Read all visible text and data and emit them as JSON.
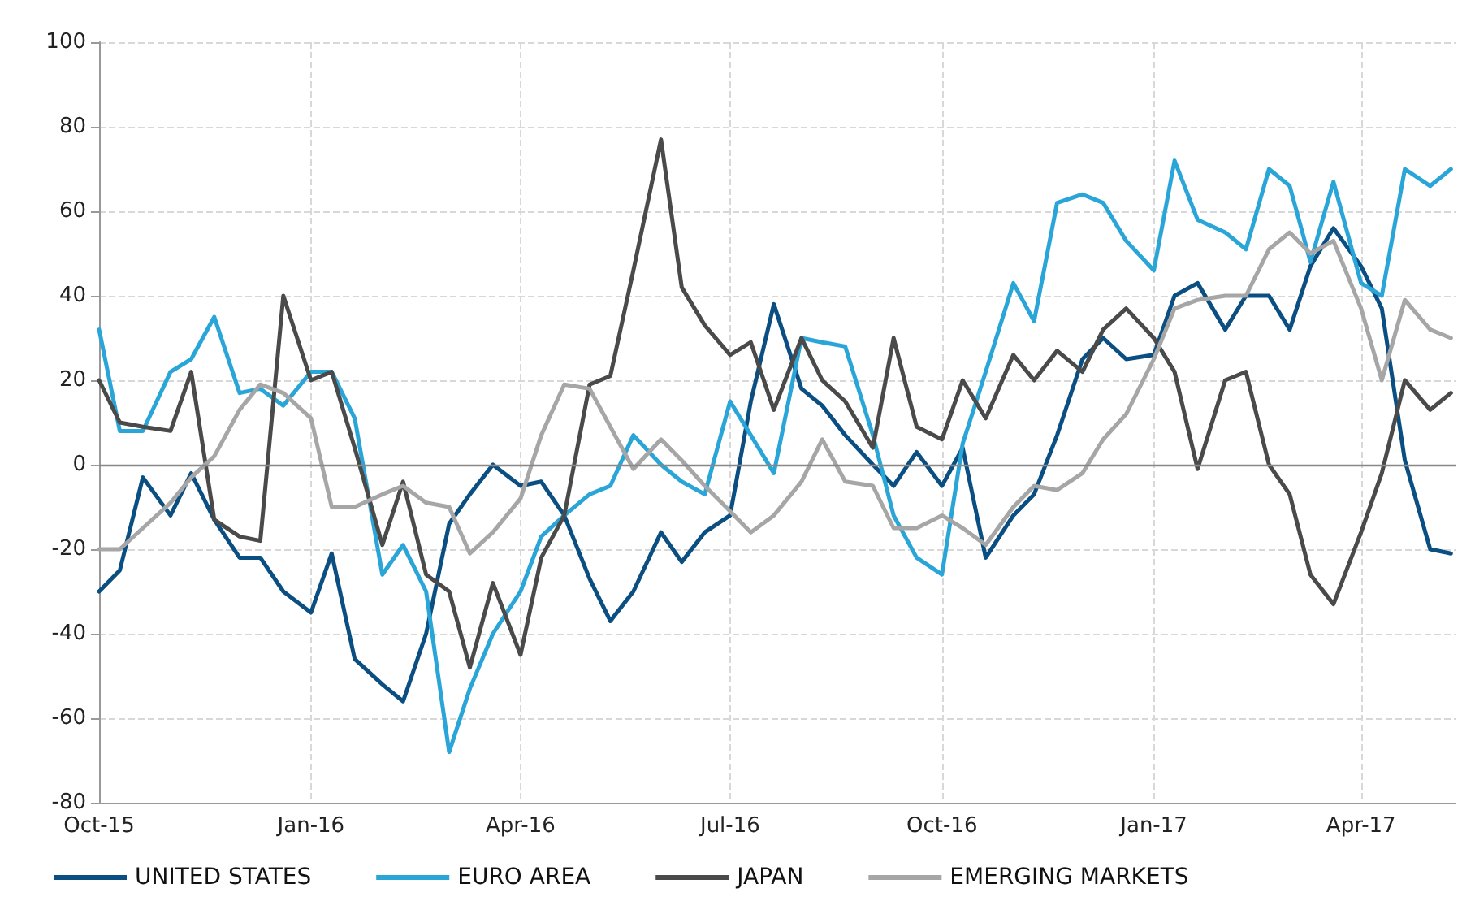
{
  "chart_data": {
    "type": "line",
    "x": [
      "2015-10-01",
      "2015-10-10",
      "2015-10-20",
      "2015-11-01",
      "2015-11-10",
      "2015-11-20",
      "2015-12-01",
      "2015-12-10",
      "2015-12-20",
      "2016-01-01",
      "2016-01-10",
      "2016-01-20",
      "2016-02-01",
      "2016-02-10",
      "2016-02-20",
      "2016-03-01",
      "2016-03-10",
      "2016-03-20",
      "2016-04-01",
      "2016-04-10",
      "2016-04-20",
      "2016-05-01",
      "2016-05-10",
      "2016-05-20",
      "2016-06-01",
      "2016-06-10",
      "2016-06-20",
      "2016-07-01",
      "2016-07-10",
      "2016-07-20",
      "2016-08-01",
      "2016-08-10",
      "2016-08-20",
      "2016-09-01",
      "2016-09-10",
      "2016-09-20",
      "2016-10-01",
      "2016-10-10",
      "2016-10-20",
      "2016-11-01",
      "2016-11-10",
      "2016-11-20",
      "2016-12-01",
      "2016-12-10",
      "2016-12-20",
      "2017-01-01",
      "2017-01-10",
      "2017-01-20",
      "2017-02-01",
      "2017-02-10",
      "2017-02-20",
      "2017-03-01",
      "2017-03-10",
      "2017-03-20",
      "2017-04-01",
      "2017-04-10",
      "2017-04-20",
      "2017-05-01",
      "2017-05-10"
    ],
    "series": [
      {
        "name": "UNITED STATES",
        "color": "#0b4f82",
        "values": [
          -30,
          -25,
          -3,
          -12,
          -2,
          -13,
          -22,
          -22,
          -30,
          -35,
          -21,
          -46,
          -52,
          -56,
          -40,
          -14,
          -7,
          0,
          -5,
          -4,
          -12,
          -27,
          -37,
          -30,
          -16,
          -23,
          -16,
          -12,
          15,
          38,
          18,
          14,
          7,
          0,
          -5,
          3,
          -5,
          4,
          -22,
          -12,
          -7,
          7,
          25,
          30,
          25,
          26,
          40,
          43,
          32,
          40,
          40,
          32,
          47,
          56,
          47,
          37,
          1,
          -20,
          -21
        ]
      },
      {
        "name": "EURO AREA",
        "color": "#2aa5d8",
        "values": [
          32,
          8,
          8,
          22,
          25,
          35,
          17,
          18,
          14,
          22,
          22,
          11,
          -26,
          -19,
          -30,
          -68,
          -53,
          -40,
          -30,
          -17,
          -12,
          -7,
          -5,
          7,
          0,
          -4,
          -7,
          15,
          7,
          -2,
          30,
          29,
          28,
          7,
          -12,
          -22,
          -26,
          5,
          22,
          43,
          34,
          62,
          64,
          62,
          53,
          46,
          72,
          58,
          55,
          51,
          70,
          66,
          48,
          67,
          43,
          40,
          70,
          66,
          70
        ]
      },
      {
        "name": "JAPAN",
        "color": "#4a4a4a",
        "values": [
          20,
          10,
          9,
          8,
          22,
          -13,
          -17,
          -18,
          40,
          20,
          22,
          4,
          -19,
          -4,
          -26,
          -30,
          -48,
          -28,
          -45,
          -22,
          -12,
          19,
          21,
          46,
          77,
          42,
          33,
          26,
          29,
          13,
          30,
          20,
          15,
          4,
          30,
          9,
          6,
          20,
          11,
          26,
          20,
          27,
          22,
          32,
          37,
          30,
          22,
          -1,
          20,
          22,
          0,
          -7,
          -26,
          -33,
          -16,
          -2,
          20,
          13,
          17
        ]
      },
      {
        "name": "EMERGING MARKETS",
        "color": "#a6a6a6",
        "values": [
          -20,
          -20,
          -15,
          -9,
          -3,
          2,
          13,
          19,
          17,
          11,
          -10,
          -10,
          -7,
          -5,
          -9,
          -10,
          -21,
          -16,
          -8,
          7,
          19,
          18,
          9,
          -1,
          6,
          1,
          -5,
          -11,
          -16,
          -12,
          -4,
          6,
          -4,
          -5,
          -15,
          -15,
          -12,
          -15,
          -19,
          -10,
          -5,
          -6,
          -2,
          6,
          12,
          25,
          37,
          39,
          40,
          40,
          51,
          55,
          50,
          53,
          37,
          20,
          39,
          32,
          30
        ]
      }
    ],
    "xlim": [
      "2015-10-01",
      "2017-05-12"
    ],
    "xticks": [
      {
        "value": "2015-10-01",
        "label": "Oct-15"
      },
      {
        "value": "2016-01-01",
        "label": "Jan-16"
      },
      {
        "value": "2016-04-01",
        "label": "Apr-16"
      },
      {
        "value": "2016-07-01",
        "label": "Jul-16"
      },
      {
        "value": "2016-10-01",
        "label": "Oct-16"
      },
      {
        "value": "2017-01-01",
        "label": "Jan-17"
      },
      {
        "value": "2017-04-01",
        "label": "Apr-17"
      }
    ],
    "ylim": [
      -80,
      100
    ],
    "yticks": [
      -80,
      -60,
      -40,
      -20,
      0,
      20,
      40,
      60,
      80,
      100
    ],
    "ref_lines": [
      {
        "axis": "y",
        "value": 0,
        "color": "#888888"
      }
    ],
    "grid": true,
    "legend": "bottom",
    "marker": "none",
    "line_style": "solid"
  }
}
